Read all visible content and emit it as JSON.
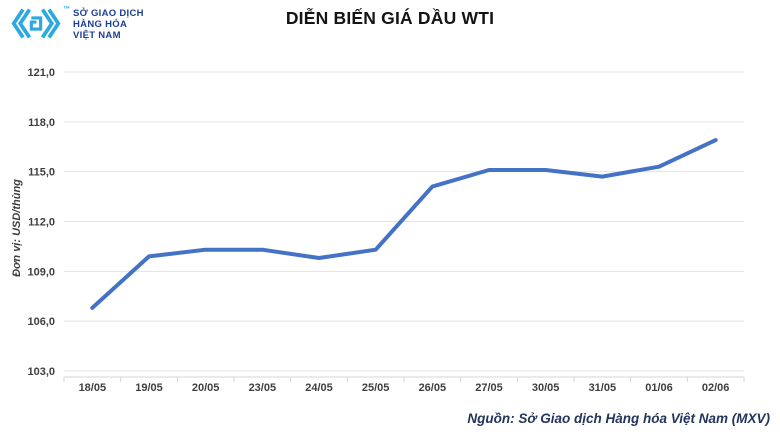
{
  "header": {
    "logo": {
      "line1": "SỞ GIAO DỊCH",
      "line2": "HÀNG HÓA",
      "line3": "VIỆT NAM",
      "tm": "™",
      "icon_color": "#2BA9E0",
      "text_color": "#1C3F94"
    },
    "title": "DIỄN BIẾN GIÁ DẦU WTI"
  },
  "chart_data": {
    "type": "line",
    "title": "DIỄN BIẾN GIÁ DẦU WTI",
    "ylabel": "Đơn vị: USD/thùng",
    "xlabel": "",
    "categories": [
      "18/05",
      "19/05",
      "20/05",
      "23/05",
      "24/05",
      "25/05",
      "26/05",
      "27/05",
      "30/05",
      "31/05",
      "01/06",
      "02/06"
    ],
    "values": [
      106.8,
      109.9,
      110.3,
      110.3,
      109.8,
      110.3,
      114.1,
      115.1,
      115.1,
      114.7,
      115.3,
      116.9
    ],
    "ylim": [
      103,
      121
    ],
    "ytick_step": 3,
    "yticks": [
      {
        "value": 103,
        "label": "103,0"
      },
      {
        "value": 106,
        "label": "106,0"
      },
      {
        "value": 109,
        "label": "109,0"
      },
      {
        "value": 112,
        "label": "112,0"
      },
      {
        "value": 115,
        "label": "115,0"
      },
      {
        "value": 118,
        "label": "118,0"
      },
      {
        "value": 121,
        "label": "121,0"
      }
    ],
    "grid": "horizontal",
    "legend": "none",
    "colors": {
      "line": "#4472C4",
      "grid": "#E3E3E3",
      "axis": "#D6D6D6",
      "tick_text": "#3F3F3F"
    }
  },
  "footer": {
    "source": "Nguồn: Sở Giao dịch Hàng hóa Việt Nam (MXV)"
  }
}
